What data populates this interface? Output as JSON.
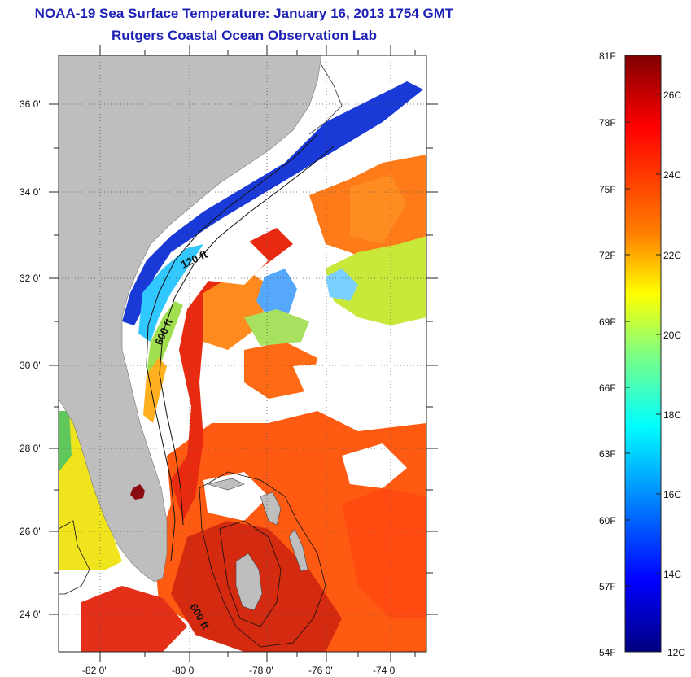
{
  "title": {
    "line1": "NOAA-19 Sea Surface Temperature:  January 16, 2013 1754 GMT",
    "line2": "Rutgers Coastal Ocean Observation Lab"
  },
  "map": {
    "lat_labels": [
      "36 0'",
      "34 0'",
      "32 0'",
      "30 0'",
      "28 0'",
      "26 0'",
      "24 0'"
    ],
    "lon_labels": [
      "-82 0'",
      "-80 0'",
      "-78 0'",
      "-76 0'",
      "-74 0'"
    ],
    "contour_labels": [
      "120 ft",
      "600 ft",
      "600 ft"
    ],
    "land_color": "#bebebe",
    "cloud_color": "#ffffff"
  },
  "colorbar": {
    "fahrenheit_labels": [
      "81F",
      "78F",
      "75F",
      "72F",
      "69F",
      "66F",
      "63F",
      "60F",
      "57F",
      "54F"
    ],
    "celsius_labels": [
      "26C",
      "24C",
      "22C",
      "20C",
      "18C",
      "16C",
      "14C",
      "12C"
    ],
    "colors": [
      "#800000",
      "#ff0000",
      "#ff8000",
      "#ffff00",
      "#80ff80",
      "#00ffff",
      "#0080ff",
      "#0000ff",
      "#000080"
    ]
  }
}
